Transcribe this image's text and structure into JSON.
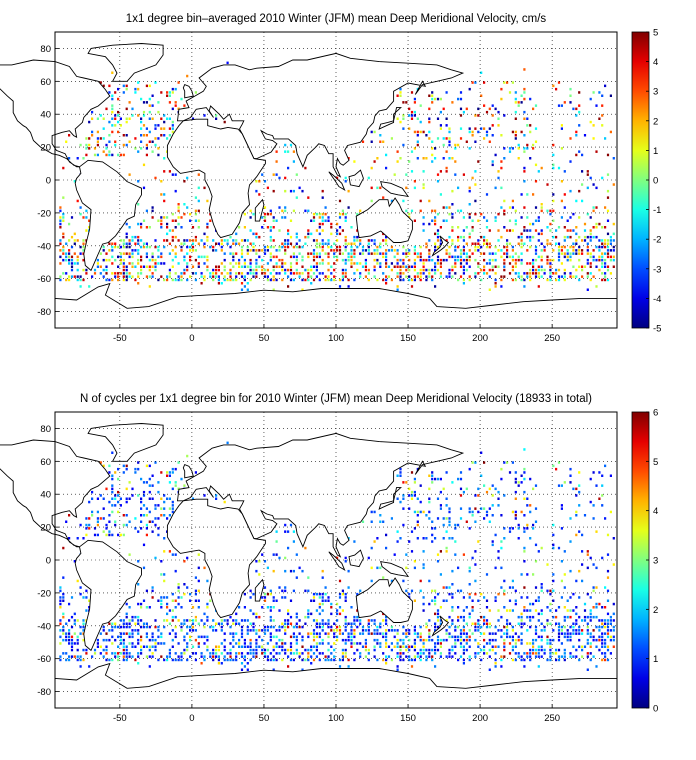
{
  "panels": [
    {
      "title": "1x1 degree bin–averaged 2010 Winter (JFM) mean Deep Meridional Velocity, cm/s",
      "colorbar": {
        "min": -5,
        "max": 5,
        "ticks": [
          "5",
          "4",
          "3",
          "2",
          "1",
          "0",
          "-1",
          "-2",
          "-3",
          "-4",
          "-5"
        ],
        "colormap": "jet"
      }
    },
    {
      "title": "N of cycles per 1x1 degree bin for 2010 Winter (JFM) mean Deep Meridional Velocity (18933 in total)",
      "colorbar": {
        "min": 0,
        "max": 6,
        "ticks": [
          "6",
          "5",
          "4",
          "3",
          "2",
          "1",
          "0"
        ],
        "colormap": "jet"
      }
    }
  ],
  "map_axes": {
    "x_ticks": [
      "-50",
      "0",
      "50",
      "100",
      "150",
      "200",
      "250"
    ],
    "y_ticks": [
      "80",
      "60",
      "40",
      "20",
      "0",
      "-20",
      "-40",
      "-60",
      "-80"
    ],
    "xlim": [
      -95,
      295
    ],
    "ylim": [
      -90,
      90
    ],
    "grid": "dotted"
  },
  "colors": {
    "land": "#ffffff",
    "coast": "#000000",
    "grid": "#000000"
  }
}
